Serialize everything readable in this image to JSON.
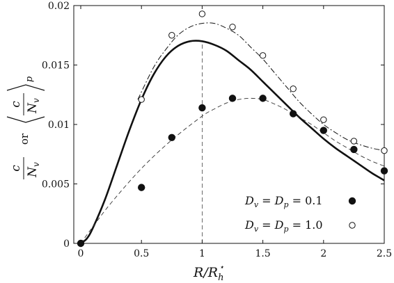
{
  "chart_data": {
    "type": "scatter",
    "xlim": [
      0,
      2.5
    ],
    "ylim": [
      0,
      0.02
    ],
    "x_ticks": [
      0,
      0.5,
      1,
      1.5,
      2,
      2.5
    ],
    "x_tick_labels": [
      "0",
      "0.5",
      "1",
      "1.5",
      "2",
      "2.5"
    ],
    "y_ticks": [
      0,
      0.005,
      0.01,
      0.015,
      0.02
    ],
    "y_tick_labels": [
      "0",
      "0.005",
      "0.01",
      "0.015",
      "0.02"
    ],
    "xlabel": "R/R_h^⋆",
    "ylabel": "c/N_v or ⟨c/N_v⟩_p",
    "legend_position": "bottom-right",
    "vertical_reference_x": 1.0,
    "series": [
      {
        "name": "D_v = D_p = 0.1",
        "style": "filled-circle",
        "points": [
          [
            0,
            0
          ],
          [
            0.5,
            0.0047
          ],
          [
            0.75,
            0.0089
          ],
          [
            1.0,
            0.0114
          ],
          [
            1.25,
            0.0122
          ],
          [
            1.5,
            0.0122
          ],
          [
            1.75,
            0.0109
          ],
          [
            2.0,
            0.0095
          ],
          [
            2.25,
            0.0079
          ],
          [
            2.5,
            0.0061
          ]
        ]
      },
      {
        "name": "D_v = D_p = 1.0",
        "style": "open-circle",
        "points": [
          [
            0.5,
            0.0121
          ],
          [
            0.75,
            0.0175
          ],
          [
            1.0,
            0.0193
          ],
          [
            1.25,
            0.0182
          ],
          [
            1.5,
            0.0158
          ],
          [
            1.75,
            0.013
          ],
          [
            2.0,
            0.0104
          ],
          [
            2.25,
            0.0086
          ],
          [
            2.5,
            0.0078
          ]
        ]
      }
    ],
    "curves": [
      {
        "style": "solid-thick",
        "points": [
          [
            0,
            0
          ],
          [
            0.05,
            0.0004
          ],
          [
            0.1,
            0.0013
          ],
          [
            0.2,
            0.0037
          ],
          [
            0.3,
            0.0066
          ],
          [
            0.4,
            0.0095
          ],
          [
            0.5,
            0.0121
          ],
          [
            0.6,
            0.0142
          ],
          [
            0.7,
            0.0157
          ],
          [
            0.8,
            0.0166
          ],
          [
            0.9,
            0.017
          ],
          [
            1.0,
            0.017
          ],
          [
            1.1,
            0.0167
          ],
          [
            1.2,
            0.0162
          ],
          [
            1.3,
            0.0154
          ],
          [
            1.4,
            0.0146
          ],
          [
            1.5,
            0.0136
          ],
          [
            1.6,
            0.0126
          ],
          [
            1.7,
            0.0116
          ],
          [
            1.8,
            0.0106
          ],
          [
            1.9,
            0.0097
          ],
          [
            2.0,
            0.0088
          ],
          [
            2.1,
            0.008
          ],
          [
            2.2,
            0.0073
          ],
          [
            2.3,
            0.0066
          ],
          [
            2.4,
            0.0059
          ],
          [
            2.5,
            0.0053
          ]
        ]
      },
      {
        "style": "dash-dot",
        "points": [
          [
            0.47,
            0.0121
          ],
          [
            0.6,
            0.0148
          ],
          [
            0.7,
            0.0163
          ],
          [
            0.8,
            0.0175
          ],
          [
            0.9,
            0.0182
          ],
          [
            1.0,
            0.0185
          ],
          [
            1.1,
            0.0185
          ],
          [
            1.2,
            0.0181
          ],
          [
            1.3,
            0.0175
          ],
          [
            1.4,
            0.0165
          ],
          [
            1.5,
            0.0155
          ],
          [
            1.6,
            0.0143
          ],
          [
            1.7,
            0.0131
          ],
          [
            1.8,
            0.0119
          ],
          [
            1.9,
            0.0109
          ],
          [
            2.0,
            0.01
          ],
          [
            2.1,
            0.0093
          ],
          [
            2.2,
            0.0087
          ],
          [
            2.3,
            0.0083
          ],
          [
            2.4,
            0.008
          ],
          [
            2.5,
            0.0078
          ]
        ]
      },
      {
        "style": "dashed-thin",
        "points": [
          [
            0,
            0
          ],
          [
            0.1,
            0.0014
          ],
          [
            0.25,
            0.0034
          ],
          [
            0.5,
            0.0063
          ],
          [
            0.75,
            0.0087
          ],
          [
            1.0,
            0.0107
          ],
          [
            1.1,
            0.0113
          ],
          [
            1.2,
            0.0118
          ],
          [
            1.3,
            0.0121
          ],
          [
            1.4,
            0.0122
          ],
          [
            1.5,
            0.0121
          ],
          [
            1.6,
            0.0117
          ],
          [
            1.7,
            0.0112
          ],
          [
            1.8,
            0.0106
          ],
          [
            1.9,
            0.01
          ],
          [
            2.0,
            0.0093
          ],
          [
            2.1,
            0.0086
          ],
          [
            2.2,
            0.008
          ],
          [
            2.3,
            0.0074
          ],
          [
            2.4,
            0.0069
          ],
          [
            2.5,
            0.0065
          ]
        ]
      }
    ]
  }
}
